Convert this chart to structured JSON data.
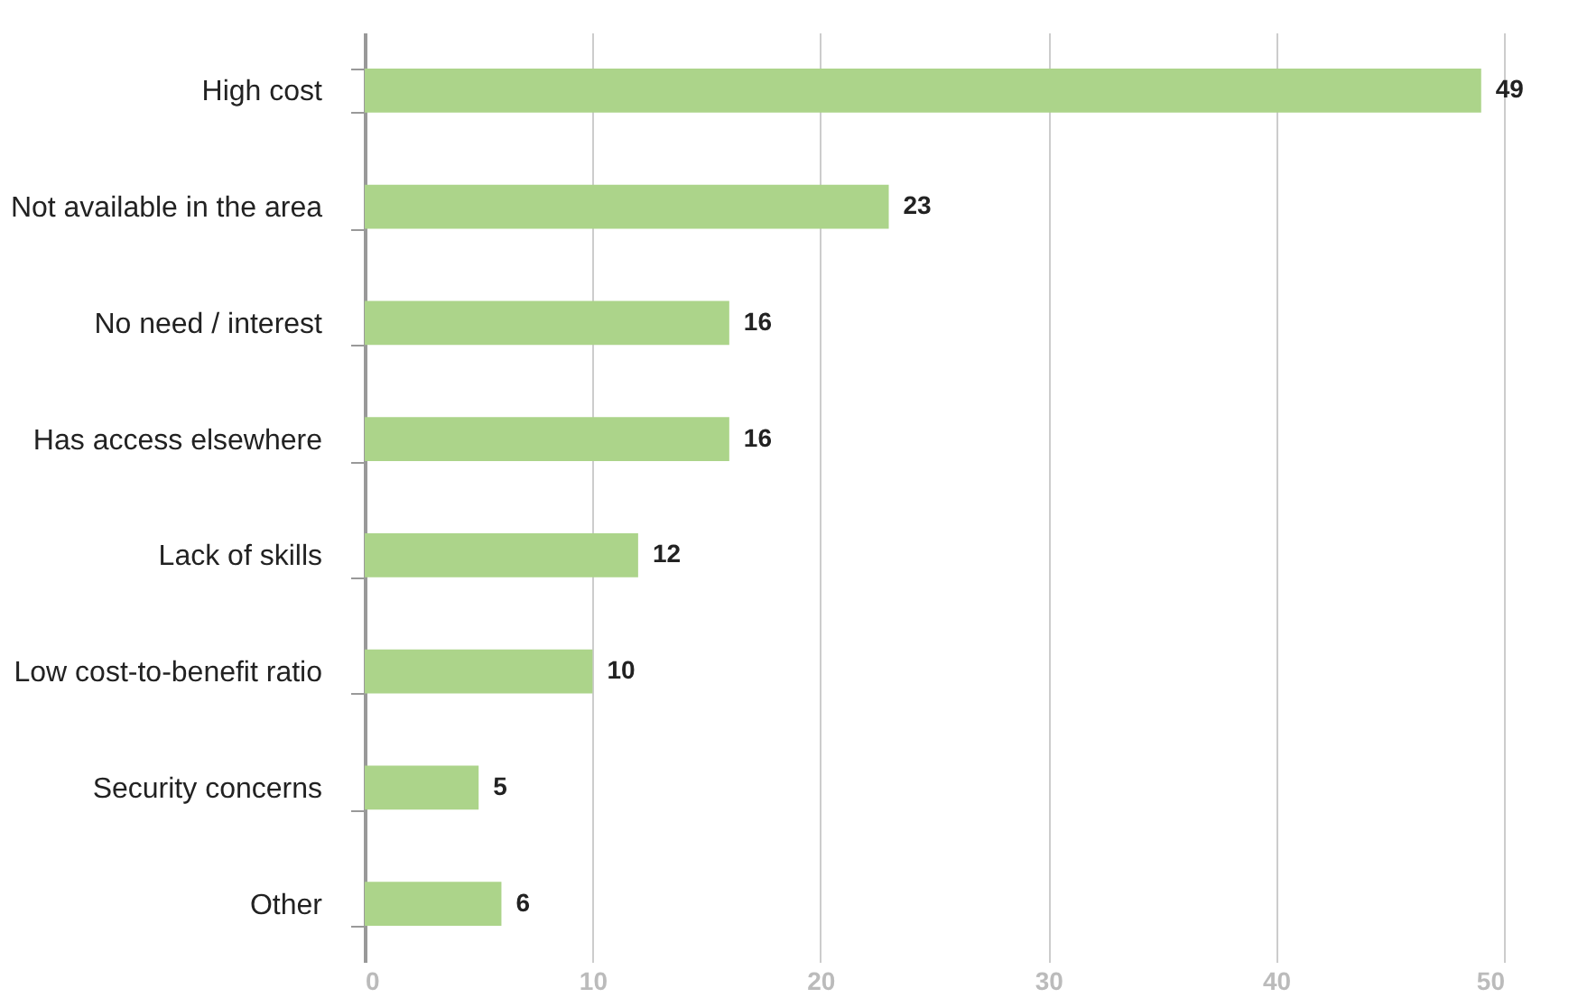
{
  "chart_data": {
    "type": "bar",
    "orientation": "horizontal",
    "categories": [
      "High cost",
      "Not available in the area",
      "No need / interest",
      "Has access elsewhere",
      "Lack of skills",
      "Low cost-to-benefit ratio",
      "Security concerns",
      "Other"
    ],
    "values": [
      49,
      23,
      16,
      16,
      12,
      10,
      5,
      6
    ],
    "color": "#acd48a",
    "xlim": [
      0,
      50
    ],
    "xticks": [
      0,
      10,
      20,
      30,
      40,
      50
    ],
    "grid": "x",
    "data_labels": true
  }
}
